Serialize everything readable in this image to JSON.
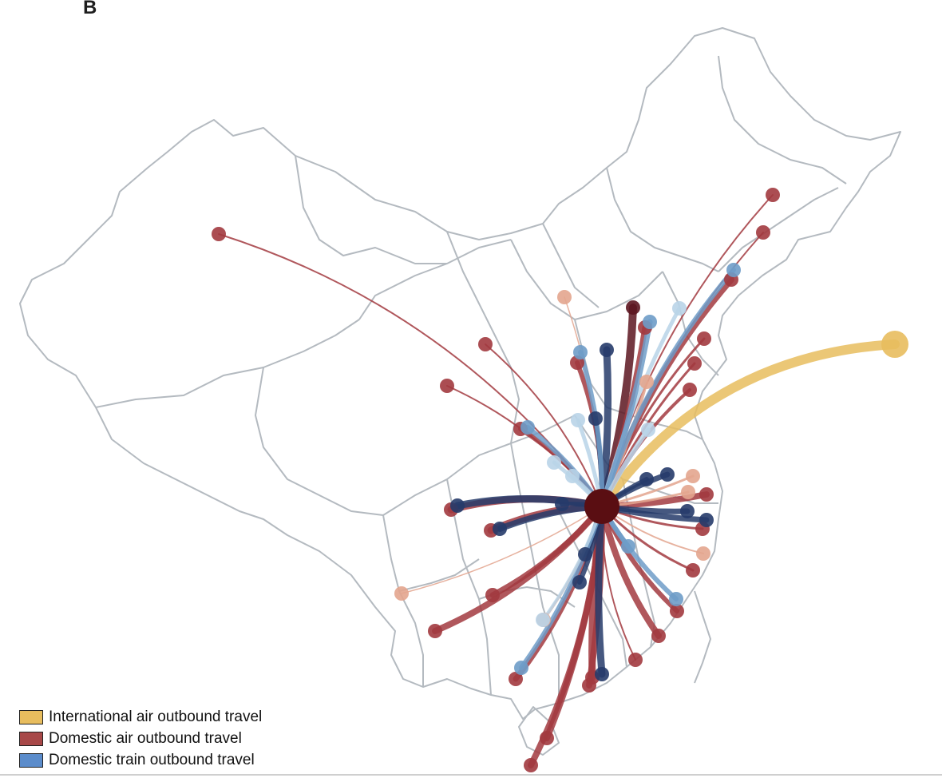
{
  "panel_label": "B",
  "colors": {
    "international_air": "#E8BD5E",
    "domestic_air_dark": "#5C1520",
    "domestic_air": "#A23A3F",
    "domestic_air_light": "#E3A58E",
    "domestic_train_dark": "#263B6A",
    "domestic_train": "#6E9CC8",
    "domestic_train_light": "#B9D4E8",
    "hub": "#5A0E12",
    "border": "#B4BAC0"
  },
  "legend": [
    {
      "label": "International air outbound travel",
      "color": "#E8BD5E"
    },
    {
      "label": "Domestic air outbound travel",
      "color": "#A84848"
    },
    {
      "label": "Domestic train outbound travel",
      "color": "#5B8CCB"
    }
  ],
  "hub": {
    "name": "origin-hub"
  },
  "routes": [
    {
      "mode": "intl-air",
      "intensity": 1.0
    },
    {
      "mode": "air",
      "intensity": 0.9
    },
    {
      "mode": "train",
      "intensity": 0.9
    },
    {
      "mode": "air",
      "intensity": 0.5
    },
    {
      "mode": "train",
      "intensity": 0.4
    },
    {
      "mode": "air",
      "intensity": 0.3
    },
    {
      "mode": "train",
      "intensity": 0.2
    }
  ]
}
